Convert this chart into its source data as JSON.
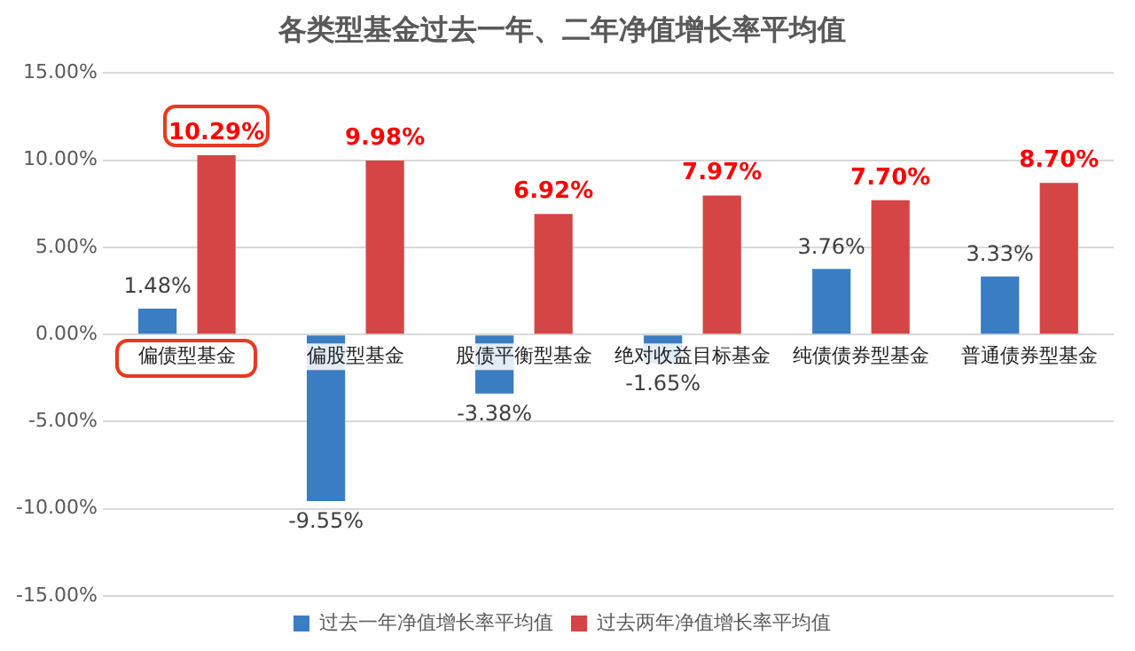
{
  "chart_data": {
    "type": "bar",
    "title": "各类型基金过去一年、二年净值增长率平均值",
    "categories": [
      "偏债型基金",
      "偏股型基金",
      "股债平衡型基金",
      "绝对收益目标基金",
      "纯债债券型基金",
      "普通债券型基金"
    ],
    "series": [
      {
        "name": "过去一年净值增长率平均值",
        "color": "#3a7dc2",
        "values": [
          1.48,
          -9.55,
          -3.38,
          -1.65,
          3.76,
          3.33
        ],
        "value_labels": [
          "1.48%",
          "-9.55%",
          "-3.38%",
          "-1.65%",
          "3.76%",
          "3.33%"
        ]
      },
      {
        "name": "过去两年净值增长率平均值",
        "color": "#d64545",
        "values": [
          10.29,
          9.98,
          6.92,
          7.97,
          7.7,
          8.7
        ],
        "value_labels": [
          "10.29%",
          "9.98%",
          "6.92%",
          "7.97%",
          "7.70%",
          "8.70%"
        ]
      }
    ],
    "ylim": [
      -15,
      15
    ],
    "yticks": [
      {
        "value": -15,
        "label": "-15.00%"
      },
      {
        "value": -10,
        "label": "-10.00%"
      },
      {
        "value": -5,
        "label": "-5.00%"
      },
      {
        "value": 0,
        "label": "0.00%"
      },
      {
        "value": 5,
        "label": "5.00%"
      },
      {
        "value": 10,
        "label": "10.00%"
      },
      {
        "value": 15,
        "label": "15.00%"
      }
    ],
    "grid": "y",
    "legend": "bottom"
  }
}
